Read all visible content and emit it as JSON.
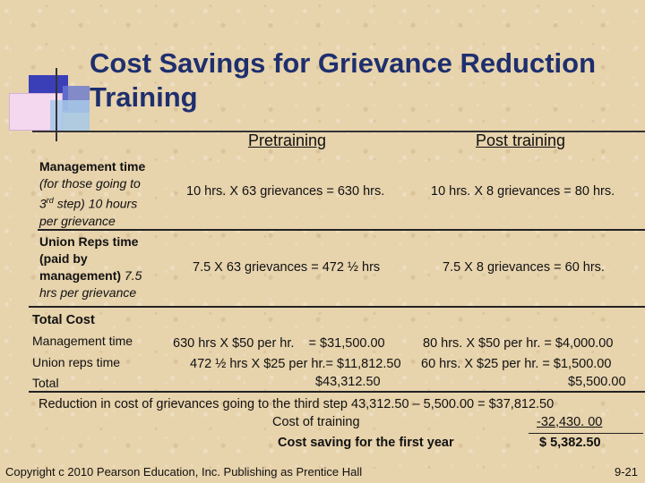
{
  "slide": {
    "title": "Cost Savings for Grievance Reduction Training",
    "col_pre": "Pretraining",
    "col_post": "Post training",
    "row1": {
      "label_bold": "Management time",
      "label_line2": "(for those going to",
      "label_line3_a": "3",
      "label_line3_sup": "rd",
      "label_line3_b": " step) 10 hours",
      "label_line4": "per grievance",
      "pre": "10 hrs. X 63 grievances = 630 hrs.",
      "post": "10 hrs. X 8 grievances = 80 hrs."
    },
    "row2": {
      "label_line1": "Union Reps time",
      "label_line2": "(paid by",
      "label_line3_a": "management) ",
      "label_line3_b": "7.5",
      "label_line4": "hrs per grievance",
      "pre": "7.5 X 63 grievances = 472 ½ hrs",
      "post": "7.5 X 8 grievances = 60 hrs."
    },
    "total": {
      "heading": "Total Cost",
      "mgmt_label": "Management time",
      "union_label": "Union reps time",
      "total_label": "Total",
      "mgmt_pre": "630 hrs X $50 per hr.    = $31,500.00",
      "mgmt_post": "80 hrs. X $50 per hr. = $4,000.00",
      "union_pre": "472 ½ hrs X $25 per hr.= $11,812.50",
      "union_post": "60 hrs. X $25 per hr. = $1,500.00",
      "total_pre": "$43,312.50",
      "total_post": "$5,500.00"
    },
    "summary": {
      "reduction": "Reduction in cost of grievances going to the third step  43,312.50 – 5,500.00 = $37,812.50",
      "training_label": "Cost of training",
      "training_value": "-32,430. 00",
      "saving_label": "Cost saving for the first year",
      "saving_value": "$ 5,382.50"
    },
    "footer": {
      "copyright": "Copyright c 2010 Pearson Education, Inc. Publishing as Prentice Hall",
      "page": "9-21"
    }
  },
  "colors": {
    "title": "#1e2f6e",
    "background": "#e7d3ac"
  }
}
